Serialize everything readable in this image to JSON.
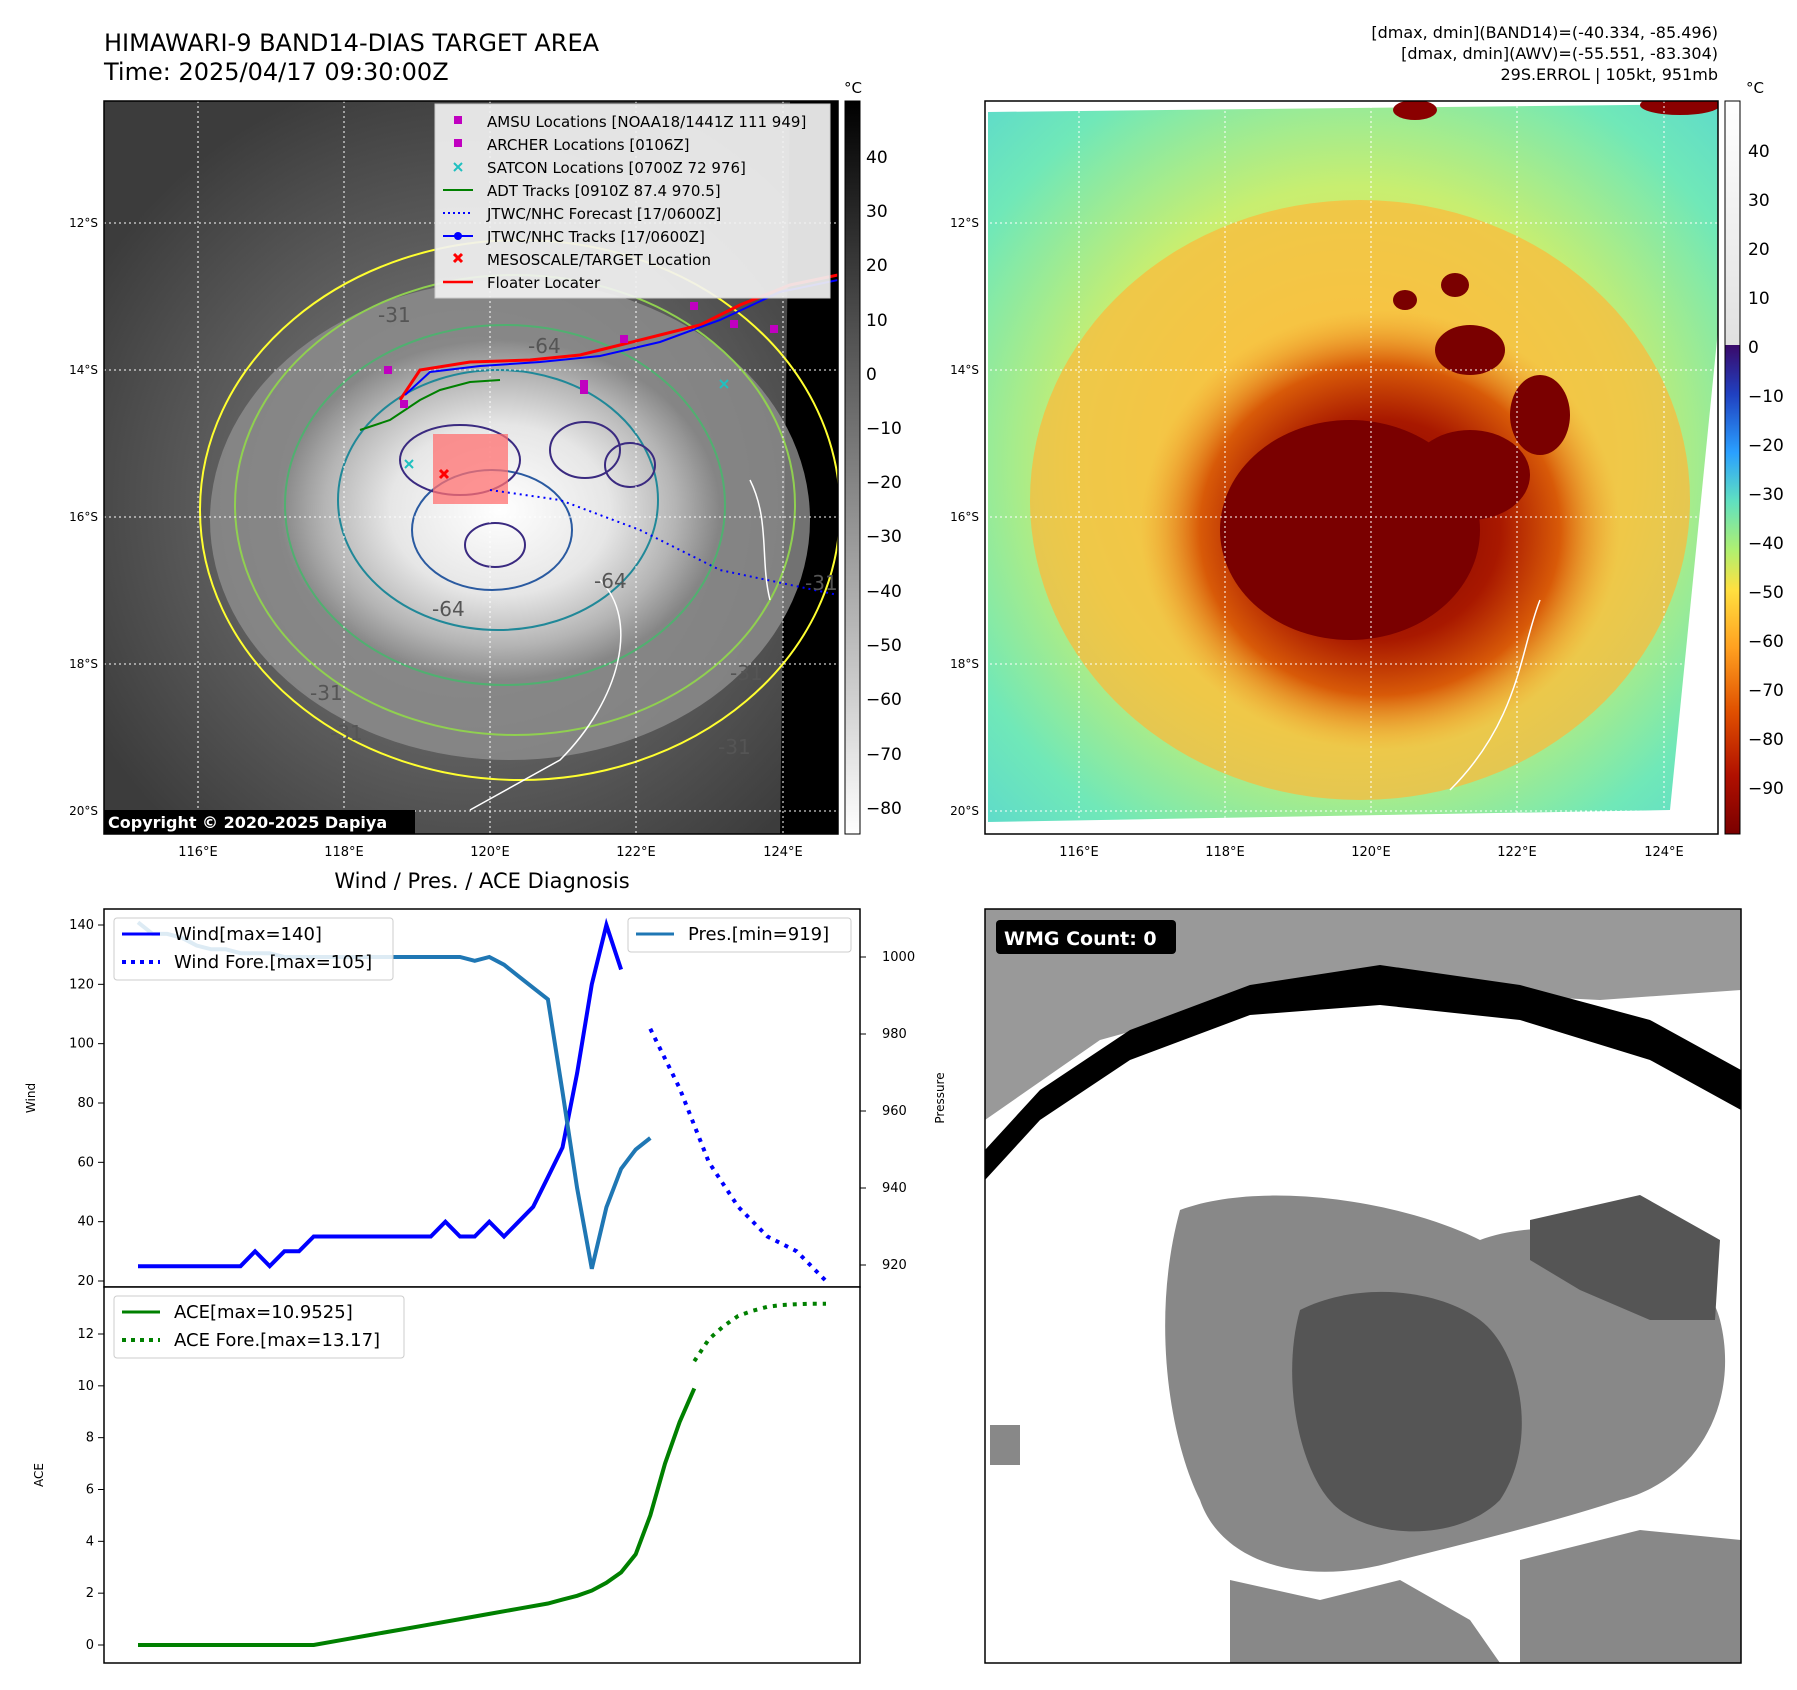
{
  "header": {
    "title_line1": "HIMAWARI-9 BAND14-DIAS TARGET AREA",
    "title_line2": "Time: 2025/04/17 09:30:00Z",
    "right_line1": "[dmax, dmin](BAND14)=(-40.334, -85.496)",
    "right_line2": "[dmax, dmin](AWV)=(-55.551, -83.304)",
    "right_line3": "29S.ERROL | 105kt, 951mb"
  },
  "map_axes": {
    "lat_ticks": [
      "12°S",
      "14°S",
      "16°S",
      "18°S",
      "20°S"
    ],
    "lon_ticks": [
      "116°E",
      "118°E",
      "120°E",
      "122°E",
      "124°E"
    ]
  },
  "ir_panel": {
    "colorbar_unit": "°C",
    "colorbar_ticks": [
      "40",
      "30",
      "20",
      "10",
      "0",
      "−10",
      "−20",
      "−30",
      "−40",
      "−50",
      "−60",
      "−70",
      "−80"
    ],
    "copyright": "Copyright © 2020-2025 Dapiya",
    "contour_labels": [
      "-31",
      "-64",
      "-64",
      "-64",
      "-31",
      "-31",
      "-31",
      "-31",
      "-31"
    ],
    "legend": [
      {
        "label": "AMSU Locations [NOAA18/1441Z 111 949]",
        "marker": "square",
        "color": "#c000c0"
      },
      {
        "label": "ARCHER Locations [0106Z]",
        "marker": "square",
        "color": "#c000c0"
      },
      {
        "label": "SATCON Locations [0700Z 72 976]",
        "marker": "x",
        "color": "#20c0c0"
      },
      {
        "label": "ADT Tracks [0910Z 87.4 970.5]",
        "marker": "line",
        "color": "#008000"
      },
      {
        "label": "JTWC/NHC Forecast [17/0600Z]",
        "marker": "dotted",
        "color": "#0000ff"
      },
      {
        "label": "JTWC/NHC Tracks [17/0600Z]",
        "marker": "line-dot",
        "color": "#0000ff"
      },
      {
        "label": "MESOSCALE/TARGET Location",
        "marker": "x",
        "color": "#ff0000"
      },
      {
        "label": "Floater Locater",
        "marker": "line",
        "color": "#ff0000"
      }
    ]
  },
  "awv_panel": {
    "colorbar_unit": "°C",
    "colorbar_ticks": [
      "40",
      "30",
      "20",
      "10",
      "0",
      "−10",
      "−20",
      "−30",
      "−40",
      "−50",
      "−60",
      "−70",
      "−80",
      "−90"
    ]
  },
  "wmg_panel": {
    "label": "WMG Count: 0"
  },
  "chart_data": [
    {
      "type": "line",
      "title": "Wind / Pres. / ACE Diagnosis",
      "ylabel": "Wind",
      "y2label": "Pressure",
      "ylim": [
        20,
        145
      ],
      "y2lim": [
        914,
        1009
      ],
      "yticks": [
        "20",
        "40",
        "60",
        "80",
        "100",
        "120",
        "140"
      ],
      "y2ticks": [
        "920",
        "940",
        "960",
        "980",
        "1000"
      ],
      "legend_left": [
        "Wind[max=140]",
        "Wind Fore.[max=105]"
      ],
      "legend_right": [
        "Pres.[min=919]"
      ],
      "series": [
        {
          "name": "Wind[max=140]",
          "color": "#0000ff",
          "style": "solid",
          "axis": "left",
          "x": [
            0,
            1,
            2,
            3,
            4,
            5,
            6,
            7,
            8,
            9,
            10,
            11,
            12,
            13,
            14,
            15,
            16,
            17,
            18,
            19,
            20,
            21,
            22,
            23,
            24,
            25,
            26,
            27,
            28,
            29,
            30,
            31,
            32,
            33
          ],
          "values": [
            25,
            25,
            25,
            25,
            25,
            25,
            25,
            25,
            30,
            25,
            30,
            30,
            35,
            35,
            35,
            35,
            35,
            35,
            35,
            35,
            35,
            40,
            35,
            35,
            40,
            35,
            40,
            45,
            55,
            65,
            90,
            120,
            140,
            125
          ]
        },
        {
          "name": "Wind Fore.[max=105]",
          "color": "#0000ff",
          "style": "dotted",
          "axis": "left",
          "x": [
            35,
            37,
            39,
            41,
            43,
            45,
            47
          ],
          "values": [
            105,
            85,
            60,
            45,
            35,
            30,
            20
          ]
        },
        {
          "name": "Pres.[min=919]",
          "color": "#1f77b4",
          "style": "solid",
          "axis": "right",
          "x": [
            0,
            1,
            2,
            3,
            4,
            5,
            6,
            7,
            8,
            9,
            10,
            11,
            12,
            13,
            14,
            15,
            16,
            17,
            18,
            19,
            20,
            21,
            22,
            23,
            24,
            25,
            26,
            27,
            28,
            29,
            30,
            31,
            32,
            33,
            34,
            35
          ],
          "values": [
            1009,
            1006,
            1006,
            1005,
            1003,
            1002,
            1002,
            1001,
            1001,
            1001,
            1000,
            1000,
            1000,
            1000,
            1000,
            1000,
            1000,
            1000,
            1000,
            1000,
            1000,
            1000,
            1000,
            999,
            1000,
            998,
            995,
            992,
            989,
            965,
            940,
            919,
            935,
            945,
            950,
            953
          ]
        }
      ]
    },
    {
      "type": "line",
      "ylabel": "ACE",
      "ylim": [
        -0.6,
        13.2
      ],
      "yticks": [
        "0",
        "2",
        "4",
        "6",
        "8",
        "10",
        "12"
      ],
      "legend": [
        "ACE[max=10.9525]",
        "ACE Fore.[max=13.17]"
      ],
      "series": [
        {
          "name": "ACE[max=10.9525]",
          "color": "#008000",
          "style": "solid",
          "x": [
            0,
            2,
            4,
            6,
            8,
            10,
            12,
            14,
            16,
            18,
            20,
            22,
            24,
            26,
            28,
            29,
            30,
            31,
            32,
            33,
            34,
            35,
            36,
            37,
            38
          ],
          "values": [
            0,
            0,
            0,
            0,
            0,
            0,
            0,
            0.2,
            0.4,
            0.6,
            0.8,
            1.0,
            1.2,
            1.4,
            1.6,
            1.75,
            1.9,
            2.1,
            2.4,
            2.8,
            3.5,
            5.0,
            7.0,
            8.6,
            9.9
          ]
        },
        {
          "name": "ACE Fore.[max=13.17]",
          "color": "#008000",
          "style": "dotted",
          "x": [
            38,
            39,
            40,
            41,
            42,
            43,
            44,
            45,
            46,
            47
          ],
          "values": [
            10.95,
            11.8,
            12.3,
            12.7,
            12.9,
            13.05,
            13.12,
            13.15,
            13.17,
            13.17
          ]
        }
      ]
    }
  ]
}
